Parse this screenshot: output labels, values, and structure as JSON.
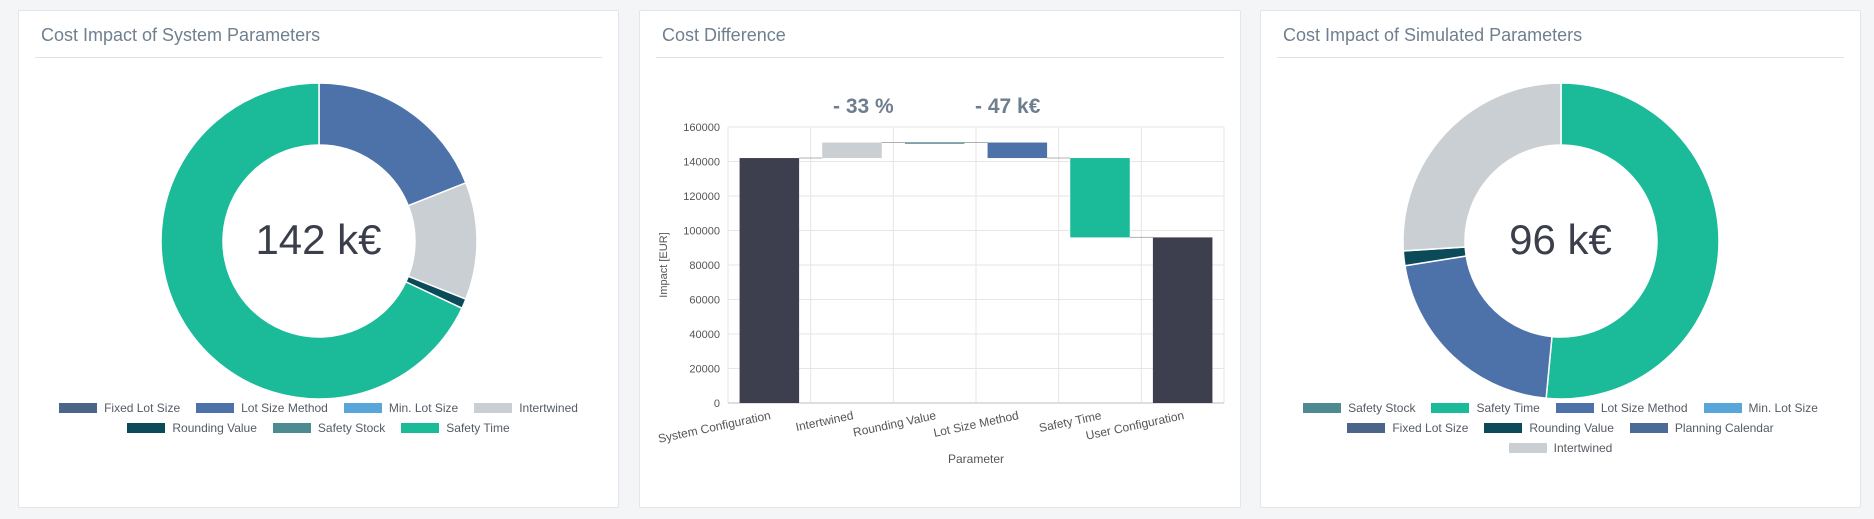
{
  "panels": {
    "left": {
      "title": "Cost Impact of System Parameters",
      "total_label": "142 k€"
    },
    "middle": {
      "title": "Cost Difference",
      "percent_change": "- 33 %",
      "abs_change": "- 47 k€"
    },
    "right": {
      "title": "Cost Impact of Simulated Parameters",
      "total_label": "96 k€"
    }
  },
  "colors": {
    "Fixed Lot Size": "#4a6588",
    "Lot Size Method": "#4d72aa",
    "Min. Lot Size": "#58a6da",
    "Intertwined": "#cacfd3",
    "Rounding Value": "#0b4a58",
    "Safety Stock": "#4e8a91",
    "Safety Time": "#1bba99",
    "Planning Calendar": "#4a6a98",
    "configuration_bar": "#3d3e4e"
  },
  "chart_data": [
    {
      "type": "pie",
      "variant": "donut",
      "title": "Cost Impact of System Parameters",
      "center_label": "142 k€",
      "legend": [
        "Fixed Lot Size",
        "Lot Size Method",
        "Min. Lot Size",
        "Intertwined",
        "Rounding Value",
        "Safety Stock",
        "Safety Time"
      ],
      "slices": [
        {
          "label": "Fixed Lot Size",
          "value": 0
        },
        {
          "label": "Lot Size Method",
          "value": 19
        },
        {
          "label": "Min. Lot Size",
          "value": 0
        },
        {
          "label": "Intertwined",
          "value": 12
        },
        {
          "label": "Rounding Value",
          "value": 1
        },
        {
          "label": "Safety Stock",
          "value": 0
        },
        {
          "label": "Safety Time",
          "value": 68
        }
      ],
      "legend_placement": "bottom"
    },
    {
      "type": "bar",
      "variant": "waterfall",
      "title": "Cost Difference",
      "xlabel": "Parameter",
      "ylabel": "Impact [EUR]",
      "ylim": [
        0,
        160000
      ],
      "yticks": [
        0,
        20000,
        40000,
        60000,
        80000,
        100000,
        120000,
        140000,
        160000
      ],
      "categories": [
        "System Configuration",
        "Intertwined",
        "Rounding Value",
        "Lot Size Method",
        "Safety Time",
        "User Configuration"
      ],
      "bars": [
        {
          "category": "System Configuration",
          "start": 0,
          "end": 142000,
          "color": "#3d3e4e"
        },
        {
          "category": "Intertwined",
          "start": 142000,
          "end": 151000,
          "color": "#cacfd3"
        },
        {
          "category": "Rounding Value",
          "start": 151000,
          "end": 151000,
          "color": "#0b4a58"
        },
        {
          "category": "Lot Size Method",
          "start": 151000,
          "end": 142000,
          "color": "#4d72aa"
        },
        {
          "category": "Safety Time",
          "start": 142000,
          "end": 96000,
          "color": "#1bba99"
        },
        {
          "category": "User Configuration",
          "start": 0,
          "end": 96000,
          "color": "#3d3e4e"
        }
      ],
      "grid": true
    },
    {
      "type": "pie",
      "variant": "donut",
      "title": "Cost Impact of Simulated Parameters",
      "center_label": "96 k€",
      "legend": [
        "Safety Stock",
        "Safety Time",
        "Lot Size Method",
        "Min. Lot Size",
        "Fixed Lot Size",
        "Rounding Value",
        "Planning Calendar",
        "Intertwined"
      ],
      "slices": [
        {
          "label": "Safety Stock",
          "value": 0
        },
        {
          "label": "Safety Time",
          "value": 51.5
        },
        {
          "label": "Lot Size Method",
          "value": 21
        },
        {
          "label": "Min. Lot Size",
          "value": 0
        },
        {
          "label": "Fixed Lot Size",
          "value": 0
        },
        {
          "label": "Rounding Value",
          "value": 1.5
        },
        {
          "label": "Planning Calendar",
          "value": 0
        },
        {
          "label": "Intertwined",
          "value": 26
        }
      ],
      "legend_placement": "bottom"
    }
  ]
}
